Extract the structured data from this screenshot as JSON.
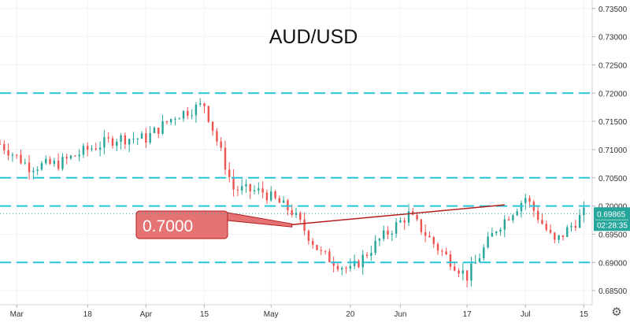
{
  "chart_data": {
    "type": "candlestick",
    "title": "AUD/USD",
    "ylim": [
      0.6825,
      0.7365
    ],
    "y_ticks": [
      "0.73500",
      "0.73000",
      "0.72500",
      "0.72000",
      "0.71500",
      "0.71000",
      "0.70500",
      "0.70000",
      "0.69500",
      "0.69000",
      "0.68500"
    ],
    "y_tick_values": [
      0.735,
      0.73,
      0.725,
      0.72,
      0.715,
      0.71,
      0.705,
      0.7,
      0.695,
      0.69,
      0.685
    ],
    "x_ticks": [
      "Mar",
      "18",
      "Apr",
      "15",
      "May",
      "20",
      "Jun",
      "17",
      "Jul",
      "15"
    ],
    "x_tick_dates": [
      "2019-03-01",
      "2019-03-18",
      "2019-04-01",
      "2019-04-15",
      "2019-05-01",
      "2019-05-20",
      "2019-06-01",
      "2019-06-17",
      "2019-07-01",
      "2019-07-15"
    ],
    "x_range": [
      "2019-02-25",
      "2019-07-17"
    ],
    "horizontal_levels": [
      0.72,
      0.705,
      0.7,
      0.69
    ],
    "level_color": "#26c6da",
    "trendline": {
      "x": [
        "2019-05-06",
        "2019-06-26"
      ],
      "y": [
        0.6967,
        0.7002
      ],
      "color": "#b71c1c"
    },
    "annotation": {
      "text": "0.7000",
      "color": "#b71c1c",
      "fill": "#e57373"
    },
    "last_price": {
      "value": 0.69865,
      "label": "0.69865",
      "countdown": "02:28:35",
      "color": "#26a69a"
    },
    "up_color": "#26a69a",
    "down_color": "#ef5350",
    "series": [
      {
        "x": [
          "2019-02-25",
          "2019-03-04",
          "2019-03-11",
          "2019-03-18",
          "2019-03-25",
          "2019-04-01",
          "2019-04-08",
          "2019-04-15",
          "2019-04-22",
          "2019-04-29",
          "2019-05-06",
          "2019-05-13",
          "2019-05-20",
          "2019-05-27",
          "2019-06-03",
          "2019-06-10",
          "2019-06-17",
          "2019-06-24",
          "2019-07-01",
          "2019-07-08",
          "2019-07-15"
        ],
        "y": [
          0.711,
          0.707,
          0.7075,
          0.71,
          0.712,
          0.712,
          0.716,
          0.718,
          0.703,
          0.7025,
          0.699,
          0.6915,
          0.6885,
          0.694,
          0.6985,
          0.6925,
          0.6875,
          0.696,
          0.7015,
          0.6935,
          0.6987
        ]
      }
    ]
  },
  "settings_icon": "gear-icon"
}
